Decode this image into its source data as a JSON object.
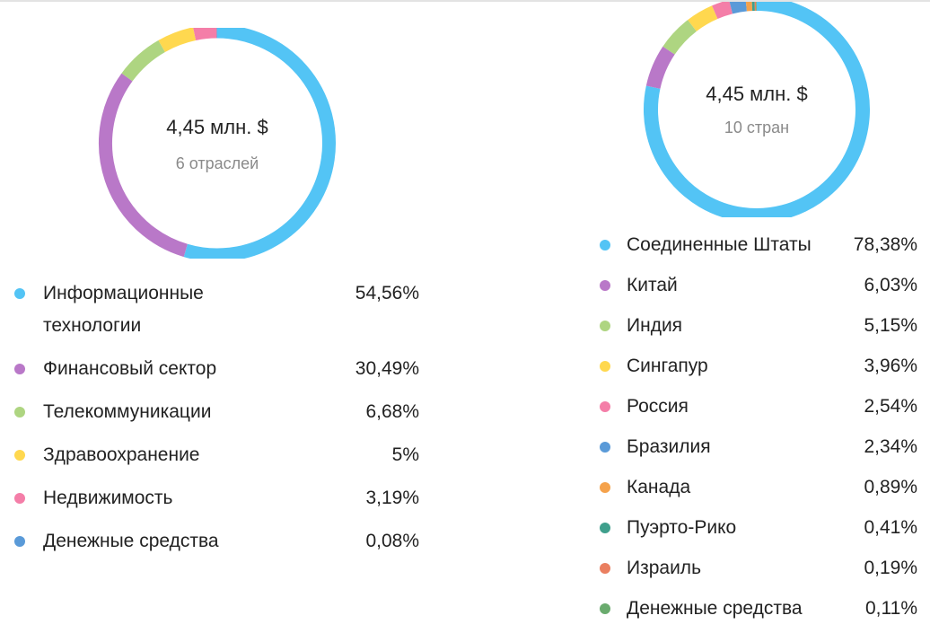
{
  "chart_data": [
    {
      "type": "pie",
      "center_value": "4,45 млн. $",
      "center_sublabel": "6 отраслей",
      "legend_position": "bottom",
      "slices": [
        {
          "label": "Информационные технологии",
          "value": 54.56,
          "value_label": "54,56%",
          "color": "#53c4f5"
        },
        {
          "label": "Финансовый сектор",
          "value": 30.49,
          "value_label": "30,49%",
          "color": "#b978c8"
        },
        {
          "label": "Телекоммуникации",
          "value": 6.68,
          "value_label": "6,68%",
          "color": "#aed581"
        },
        {
          "label": "Здравоохранение",
          "value": 5,
          "value_label": "5%",
          "color": "#ffd84f"
        },
        {
          "label": "Недвижимость",
          "value": 3.19,
          "value_label": "3,19%",
          "color": "#f47ea8"
        },
        {
          "label": "Денежные средства",
          "value": 0.08,
          "value_label": "0,08%",
          "color": "#5a9ad8"
        }
      ]
    },
    {
      "type": "pie",
      "center_value": "4,45 млн. $",
      "center_sublabel": "10 стран",
      "legend_position": "bottom",
      "slices": [
        {
          "label": "Соединенные Штаты",
          "value": 78.38,
          "value_label": "78,38%",
          "color": "#53c4f5"
        },
        {
          "label": "Китай",
          "value": 6.03,
          "value_label": "6,03%",
          "color": "#b978c8"
        },
        {
          "label": "Индия",
          "value": 5.15,
          "value_label": "5,15%",
          "color": "#aed581"
        },
        {
          "label": "Сингапур",
          "value": 3.96,
          "value_label": "3,96%",
          "color": "#ffd84f"
        },
        {
          "label": "Россия",
          "value": 2.54,
          "value_label": "2,54%",
          "color": "#f47ea8"
        },
        {
          "label": "Бразилия",
          "value": 2.34,
          "value_label": "2,34%",
          "color": "#5a9ad8"
        },
        {
          "label": "Канада",
          "value": 0.89,
          "value_label": "0,89%",
          "color": "#f5a24b"
        },
        {
          "label": "Пуэрто-Рико",
          "value": 0.41,
          "value_label": "0,41%",
          "color": "#3f9f8c"
        },
        {
          "label": "Израиль",
          "value": 0.19,
          "value_label": "0,19%",
          "color": "#ea7f60"
        },
        {
          "label": "Денежные средства",
          "value": 0.11,
          "value_label": "0,11%",
          "color": "#6aab6e"
        }
      ]
    }
  ]
}
